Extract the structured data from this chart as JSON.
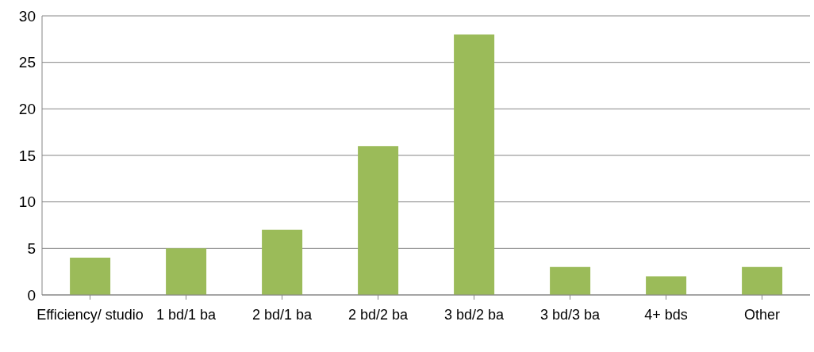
{
  "chart_data": {
    "type": "bar",
    "categories": [
      "Efficiency/ studio",
      "1 bd/1 ba",
      "2 bd/1 ba",
      "2 bd/2 ba",
      "3 bd/2 ba",
      "3 bd/3 ba",
      "4+ bds",
      "Other"
    ],
    "values": [
      4,
      5,
      7,
      16,
      28,
      3,
      2,
      3
    ],
    "color": "#9bbb59",
    "ylim": [
      0,
      30
    ],
    "yticks": [
      0,
      5,
      10,
      15,
      20,
      25,
      30
    ],
    "grid": "y",
    "legend": false
  }
}
